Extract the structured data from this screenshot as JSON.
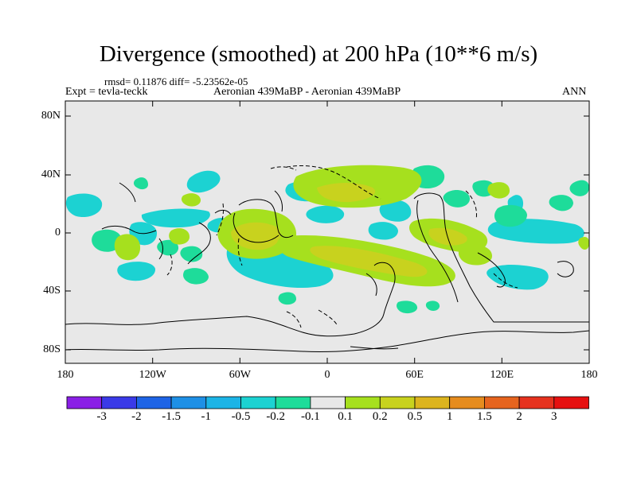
{
  "title": "Divergence (smoothed) at 200 hPa (10**6 m/s)",
  "stats_text": "rmsd= 0.11876 diff= -5.23562e-05",
  "expt_text": "Expt = tevla-teckk",
  "period_text": "Aeronian 439MaBP - Aeronian 439MaBP",
  "season_text": "ANN",
  "axes": {
    "y_ticks": [
      "80N",
      "40N",
      "0",
      "40S",
      "80S"
    ],
    "x_ticks": [
      "180",
      "120W",
      "60W",
      "0",
      "60E",
      "120E",
      "180"
    ]
  },
  "colorbar": {
    "labels": [
      "-3",
      "-2",
      "-1.5",
      "-1",
      "-0.5",
      "-0.2",
      "-0.1",
      "0.1",
      "0.2",
      "0.5",
      "1",
      "1.5",
      "2",
      "3"
    ],
    "colors": [
      "#8a1fe6",
      "#3a3ae8",
      "#1e64e6",
      "#1e90e6",
      "#1cb4e6",
      "#1cd2d2",
      "#1edc9a",
      "#e8e8e8",
      "#a6e01e",
      "#c8d21e",
      "#dcb41e",
      "#e68c1e",
      "#e6641e",
      "#e6321e",
      "#e61010"
    ]
  },
  "colors": {
    "background": "#e8e8e8",
    "negative": "#1cd2d2",
    "negative_weak": "#1edc9a",
    "positive": "#c8d21e",
    "positive_weak": "#a6e01e"
  }
}
